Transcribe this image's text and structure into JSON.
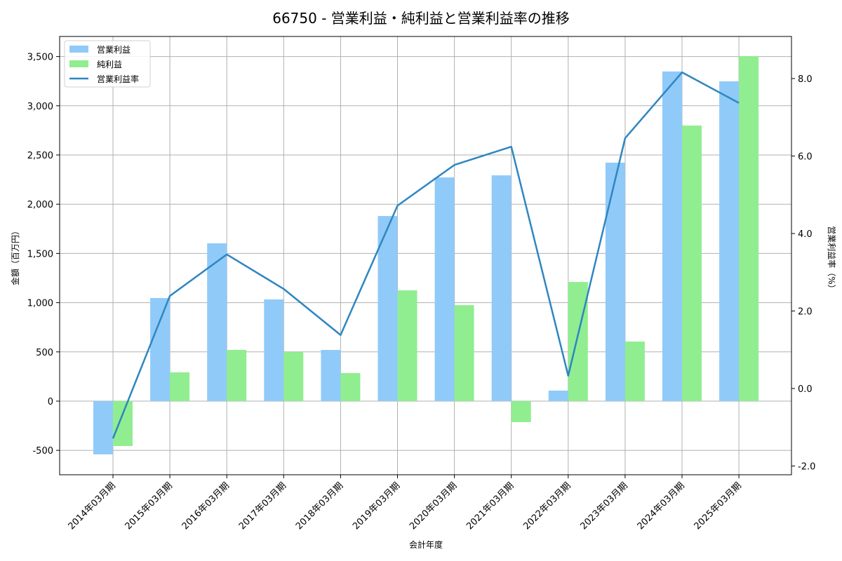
{
  "chart_data": {
    "type": "bar",
    "title": "66750 - 営業利益・純利益と営業利益率の推移",
    "xlabel": "会計年度",
    "ylabel": "金額（百万円）",
    "ylabel_right": "営業利益率（%）",
    "categories": [
      "2014年03月期",
      "2015年03月期",
      "2016年03月期",
      "2017年03月期",
      "2018年03月期",
      "2019年03月期",
      "2020年03月期",
      "2021年03月期",
      "2022年03月期",
      "2023年03月期",
      "2024年03月期",
      "2025年03月期"
    ],
    "series": [
      {
        "name": "営業利益",
        "type": "bar",
        "axis": "left",
        "color": "#90CAF9",
        "values": [
          -541,
          1047,
          1603,
          1033,
          520,
          1880,
          2272,
          2293,
          107,
          2422,
          3348,
          3248
        ]
      },
      {
        "name": "純利益",
        "type": "bar",
        "axis": "left",
        "color": "#90EE90",
        "values": [
          -456,
          292,
          520,
          499,
          285,
          1125,
          975,
          -213,
          1210,
          605,
          2799,
          3504
        ]
      },
      {
        "name": "営業利益率",
        "type": "line",
        "axis": "right",
        "color": "#2E86C1",
        "values": [
          -1.29,
          2.39,
          3.46,
          2.57,
          1.38,
          4.72,
          5.77,
          6.24,
          0.33,
          6.46,
          8.16,
          7.37
        ]
      }
    ],
    "ylim": [
      -750,
      3700
    ],
    "ylim_right": [
      -2.2,
      8.8
    ],
    "yticks": [
      -500,
      0,
      500,
      1000,
      1500,
      2000,
      2500,
      3000,
      3500
    ],
    "ytick_labels": [
      "-500",
      "0",
      "500",
      "1,000",
      "1,500",
      "2,000",
      "2,500",
      "3,000",
      "3,500"
    ],
    "yticks_right": [
      -2.0,
      0.0,
      2.0,
      4.0,
      6.0,
      8.0
    ],
    "ytick_labels_right": [
      "-2.0",
      "0.0",
      "2.0",
      "4.0",
      "6.0",
      "8.0"
    ],
    "grid": true,
    "legend_position": "upper left"
  }
}
